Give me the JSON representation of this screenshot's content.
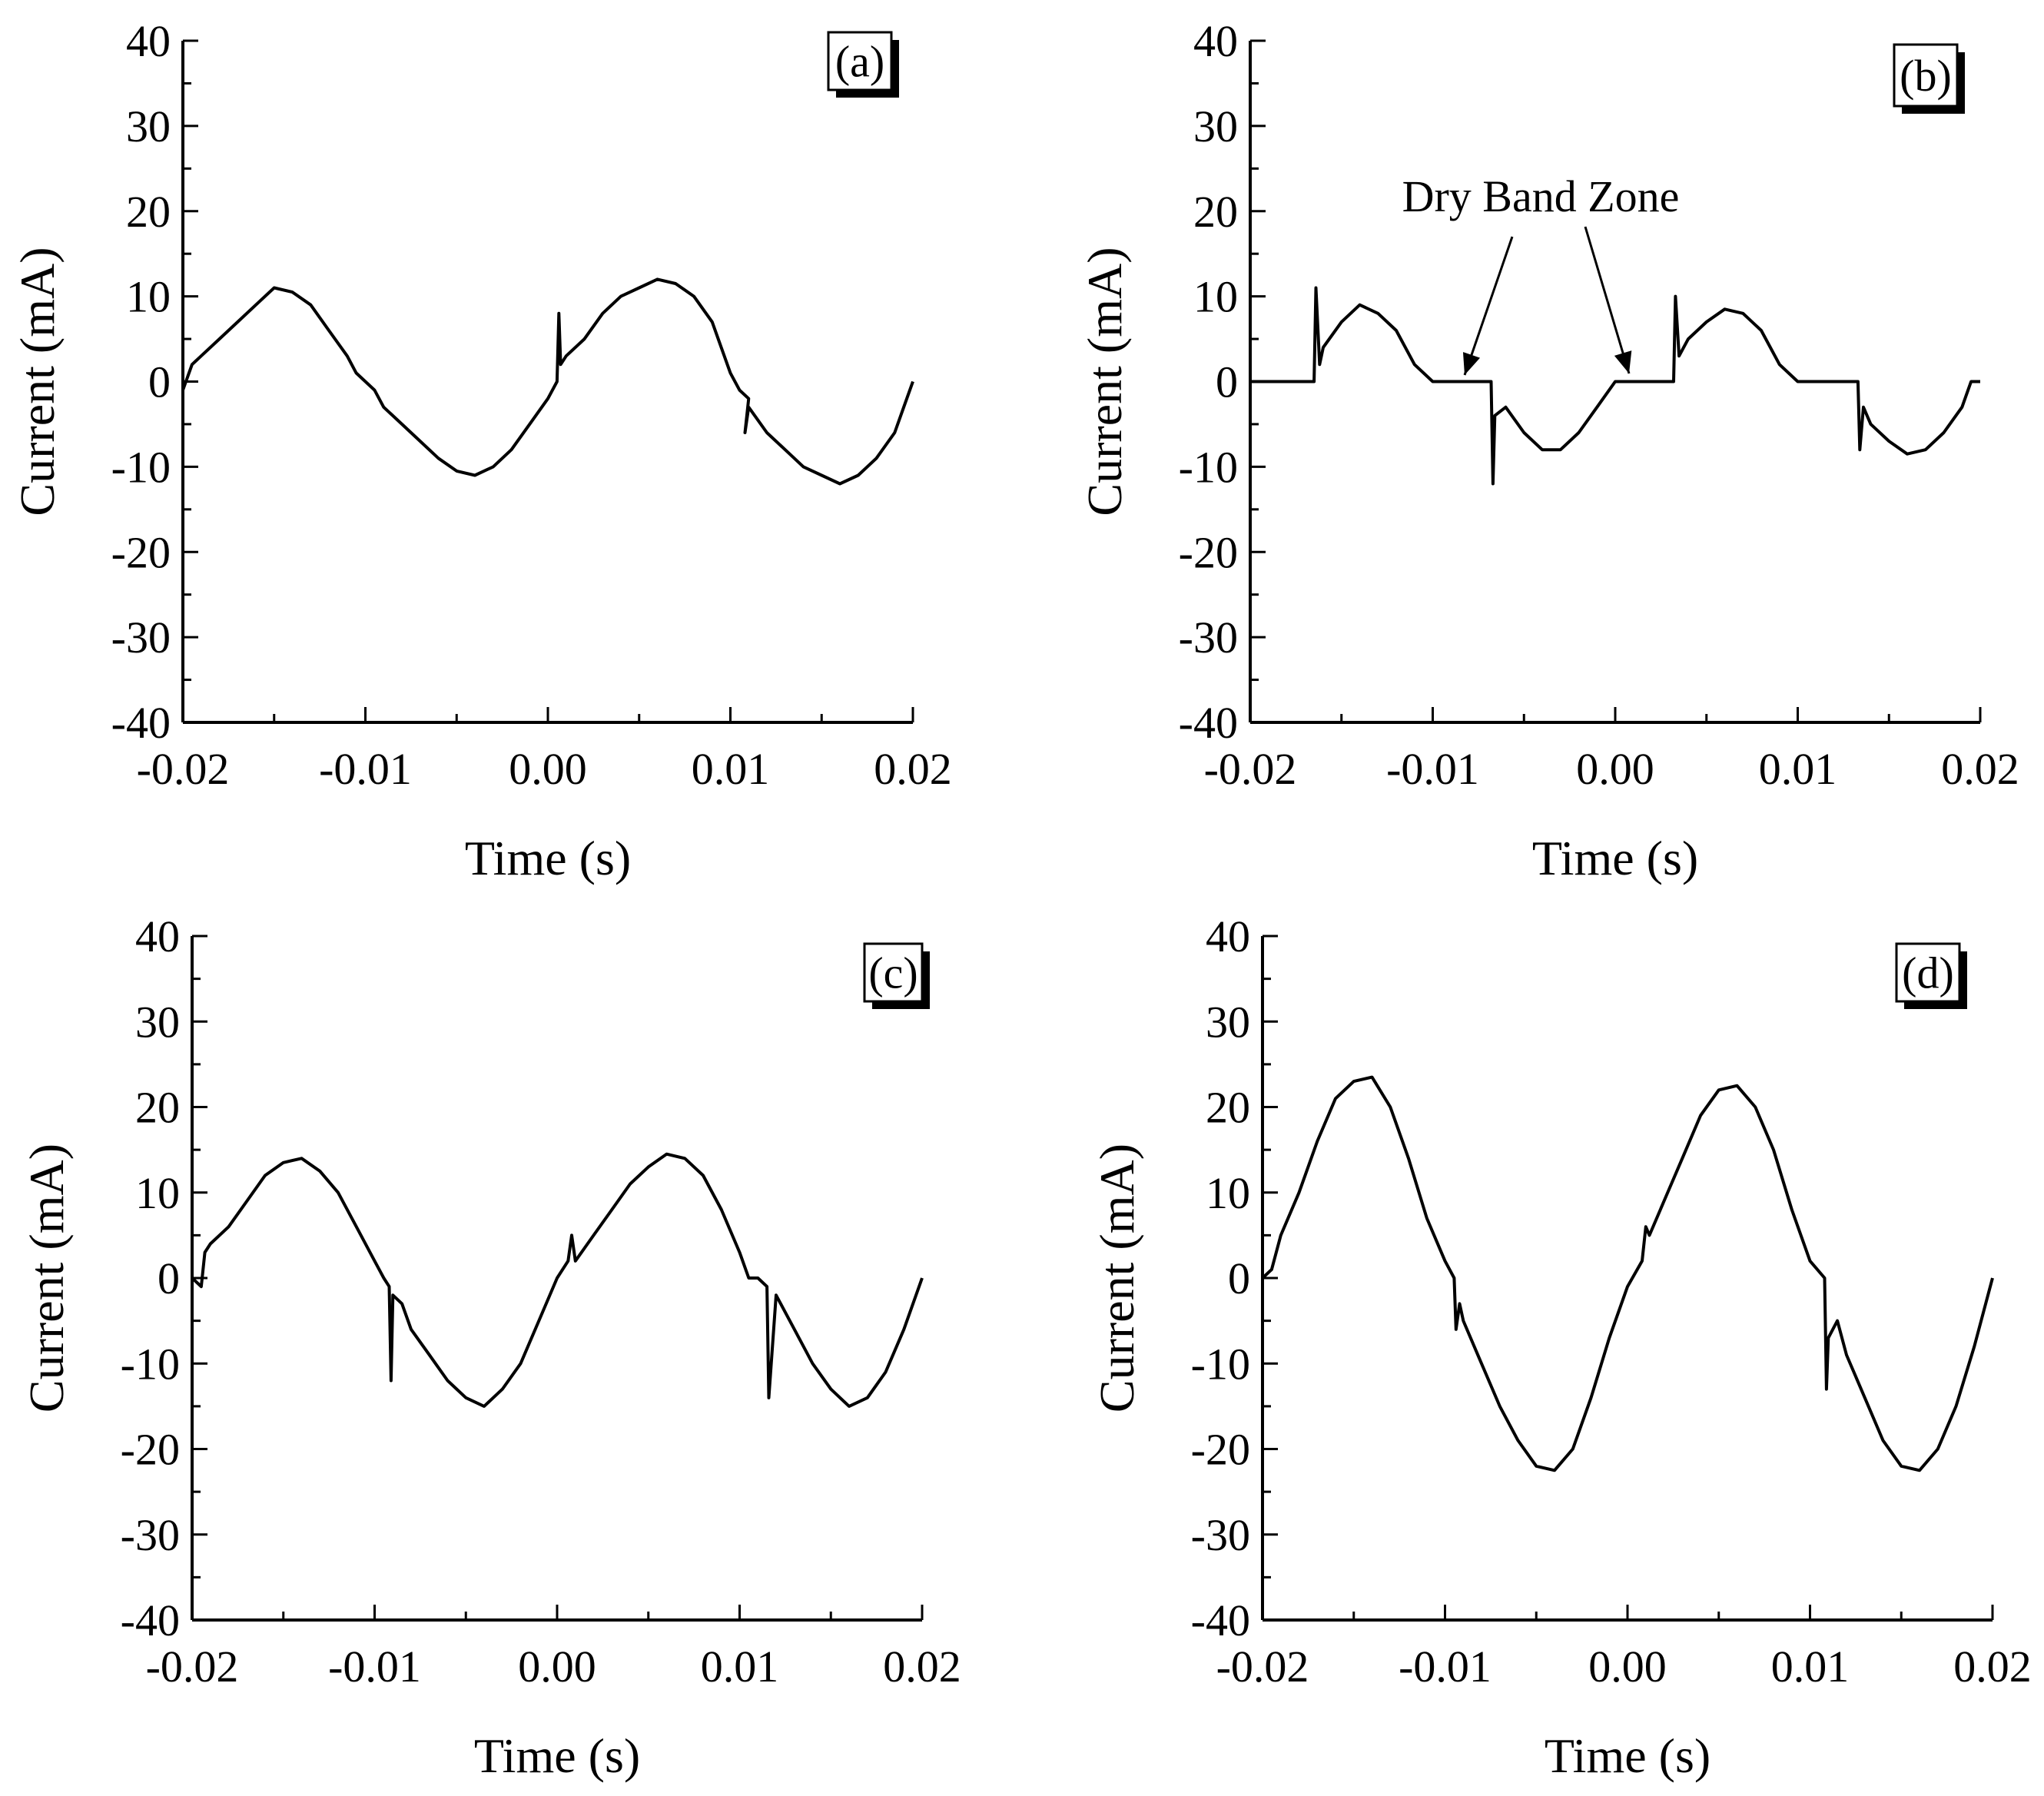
{
  "chart_data": [
    {
      "type": "line",
      "panel": "(a)",
      "xlabel": "Time (s)",
      "ylabel": "Current (mA)",
      "xlim": [
        -0.02,
        0.02
      ],
      "ylim": [
        -40,
        40
      ],
      "xticks": [
        -0.02,
        -0.01,
        0.0,
        0.01,
        0.02
      ],
      "xtick_labels": [
        "-0.02",
        "-0.01",
        "0.00",
        "0.01",
        "0.02"
      ],
      "yticks": [
        -40,
        -30,
        -20,
        -10,
        0,
        10,
        20,
        30,
        40
      ],
      "ytick_labels": [
        "-40",
        "-30",
        "-20",
        "-10",
        "0",
        "10",
        "20",
        "30",
        "40"
      ],
      "series": [
        {
          "name": "current",
          "x": [
            -0.02,
            -0.0195,
            -0.019,
            -0.018,
            -0.017,
            -0.016,
            -0.015,
            -0.014,
            -0.013,
            -0.012,
            -0.011,
            -0.0105,
            -0.01,
            -0.0095,
            -0.009,
            -0.008,
            -0.007,
            -0.006,
            -0.005,
            -0.004,
            -0.003,
            -0.002,
            -0.001,
            0.0,
            0.0005,
            0.0006,
            0.0007,
            0.001,
            0.002,
            0.003,
            0.004,
            0.005,
            0.006,
            0.007,
            0.008,
            0.009,
            0.0095,
            0.01,
            0.0105,
            0.011,
            0.0108,
            0.011,
            0.012,
            0.013,
            0.014,
            0.015,
            0.016,
            0.017,
            0.018,
            0.019,
            0.0195,
            0.02
          ],
          "y": [
            -1,
            2,
            3,
            5,
            7,
            9,
            11,
            10.5,
            9,
            6,
            3,
            1,
            0,
            -1,
            -3,
            -5,
            -7,
            -9,
            -10.5,
            -11,
            -10,
            -8,
            -5,
            -2,
            0,
            8,
            2,
            3,
            5,
            8,
            10,
            11,
            12,
            11.5,
            10,
            7,
            4,
            1,
            -1,
            -2,
            -6,
            -3,
            -6,
            -8,
            -10,
            -11,
            -12,
            -11,
            -9,
            -6,
            -3,
            0
          ]
        }
      ]
    },
    {
      "type": "line",
      "panel": "(b)",
      "xlabel": "Time (s)",
      "ylabel": "Current (mA)",
      "xlim": [
        -0.02,
        0.02
      ],
      "ylim": [
        -40,
        40
      ],
      "xticks": [
        -0.02,
        -0.01,
        0.0,
        0.01,
        0.02
      ],
      "xtick_labels": [
        "-0.02",
        "-0.01",
        "0.00",
        "0.01",
        "0.02"
      ],
      "yticks": [
        -40,
        -30,
        -20,
        -10,
        0,
        10,
        20,
        30,
        40
      ],
      "ytick_labels": [
        "-40",
        "-30",
        "-20",
        "-10",
        "0",
        "10",
        "20",
        "30",
        "40"
      ],
      "annotation": "Dry Band Zone",
      "series": [
        {
          "name": "current",
          "x": [
            -0.02,
            -0.018,
            -0.0165,
            -0.0164,
            -0.0162,
            -0.016,
            -0.015,
            -0.014,
            -0.013,
            -0.012,
            -0.011,
            -0.01,
            -0.009,
            -0.008,
            -0.0072,
            -0.0068,
            -0.0067,
            -0.0066,
            -0.006,
            -0.005,
            -0.004,
            -0.003,
            -0.002,
            -0.001,
            0.0,
            0.001,
            0.002,
            0.0032,
            0.0033,
            0.0035,
            0.004,
            0.005,
            0.006,
            0.007,
            0.008,
            0.009,
            0.01,
            0.011,
            0.012,
            0.013,
            0.0133,
            0.0134,
            0.0136,
            0.014,
            0.015,
            0.016,
            0.017,
            0.018,
            0.019,
            0.0195,
            0.02
          ],
          "y": [
            0,
            0,
            0,
            11,
            2,
            4,
            7,
            9,
            8,
            6,
            2,
            0,
            0,
            0,
            0,
            0,
            -12,
            -4,
            -3,
            -6,
            -8,
            -8,
            -6,
            -3,
            0,
            0,
            0,
            0,
            10,
            3,
            5,
            7,
            8.5,
            8,
            6,
            2,
            0,
            0,
            0,
            0,
            0,
            -8,
            -3,
            -5,
            -7,
            -8.5,
            -8,
            -6,
            -3,
            0,
            0
          ]
        }
      ]
    },
    {
      "type": "line",
      "panel": "(c)",
      "xlabel": "Time (s)",
      "ylabel": "Current (mA)",
      "xlim": [
        -0.02,
        0.02
      ],
      "ylim": [
        -40,
        40
      ],
      "xticks": [
        -0.02,
        -0.01,
        0.0,
        0.01,
        0.02
      ],
      "xtick_labels": [
        "-0.02",
        "-0.01",
        "0.00",
        "0.01",
        "0.02"
      ],
      "yticks": [
        -40,
        -30,
        -20,
        -10,
        0,
        10,
        20,
        30,
        40
      ],
      "ytick_labels": [
        "-40",
        "-30",
        "-20",
        "-10",
        "0",
        "10",
        "20",
        "30",
        "40"
      ],
      "series": [
        {
          "name": "current",
          "x": [
            -0.02,
            -0.0195,
            -0.0193,
            -0.019,
            -0.018,
            -0.017,
            -0.016,
            -0.015,
            -0.014,
            -0.013,
            -0.012,
            -0.011,
            -0.01,
            -0.0095,
            -0.0092,
            -0.0091,
            -0.009,
            -0.0085,
            -0.008,
            -0.007,
            -0.006,
            -0.005,
            -0.004,
            -0.003,
            -0.002,
            -0.001,
            0.0,
            0.0006,
            0.0008,
            0.001,
            0.002,
            0.003,
            0.004,
            0.005,
            0.006,
            0.007,
            0.008,
            0.009,
            0.01,
            0.0105,
            0.011,
            0.0115,
            0.0116,
            0.012,
            0.013,
            0.014,
            0.015,
            0.016,
            0.017,
            0.018,
            0.019,
            0.02
          ],
          "y": [
            0,
            -1,
            3,
            4,
            6,
            9,
            12,
            13.5,
            14,
            12.5,
            10,
            6,
            2,
            0,
            -1,
            -12,
            -2,
            -3,
            -6,
            -9,
            -12,
            -14,
            -15,
            -13,
            -10,
            -5,
            0,
            2,
            5,
            2,
            5,
            8,
            11,
            13,
            14.5,
            14,
            12,
            8,
            3,
            0,
            0,
            -1,
            -14,
            -2,
            -6,
            -10,
            -13,
            -15,
            -14,
            -11,
            -6,
            0
          ]
        }
      ]
    },
    {
      "type": "line",
      "panel": "(d)",
      "xlabel": "Time (s)",
      "ylabel": "Current (mA)",
      "xlim": [
        -0.02,
        0.02
      ],
      "ylim": [
        -40,
        40
      ],
      "xticks": [
        -0.02,
        -0.01,
        0.0,
        0.01,
        0.02
      ],
      "xtick_labels": [
        "-0.02",
        "-0.01",
        "0.00",
        "0.01",
        "0.02"
      ],
      "yticks": [
        -40,
        -30,
        -20,
        -10,
        0,
        10,
        20,
        30,
        40
      ],
      "ytick_labels": [
        "-40",
        "-30",
        "-20",
        "-10",
        "0",
        "10",
        "20",
        "30",
        "40"
      ],
      "series": [
        {
          "name": "current",
          "x": [
            -0.02,
            -0.0195,
            -0.019,
            -0.018,
            -0.017,
            -0.016,
            -0.015,
            -0.014,
            -0.013,
            -0.012,
            -0.011,
            -0.01,
            -0.0095,
            -0.0094,
            -0.0092,
            -0.009,
            -0.008,
            -0.007,
            -0.006,
            -0.005,
            -0.004,
            -0.003,
            -0.002,
            -0.001,
            0.0,
            0.0008,
            0.001,
            0.0012,
            0.002,
            0.003,
            0.004,
            0.005,
            0.006,
            0.007,
            0.008,
            0.009,
            0.01,
            0.0108,
            0.0109,
            0.011,
            0.0115,
            0.012,
            0.013,
            0.014,
            0.015,
            0.016,
            0.017,
            0.018,
            0.019,
            0.02
          ],
          "y": [
            0,
            1,
            5,
            10,
            16,
            21,
            23,
            23.5,
            20,
            14,
            7,
            2,
            0,
            -6,
            -3,
            -5,
            -10,
            -15,
            -19,
            -22,
            -22.5,
            -20,
            -14,
            -7,
            -1,
            2,
            6,
            5,
            9,
            14,
            19,
            22,
            22.5,
            20,
            15,
            8,
            2,
            0,
            -13,
            -7,
            -5,
            -9,
            -14,
            -19,
            -22,
            -22.5,
            -20,
            -15,
            -8,
            0
          ]
        }
      ]
    }
  ]
}
